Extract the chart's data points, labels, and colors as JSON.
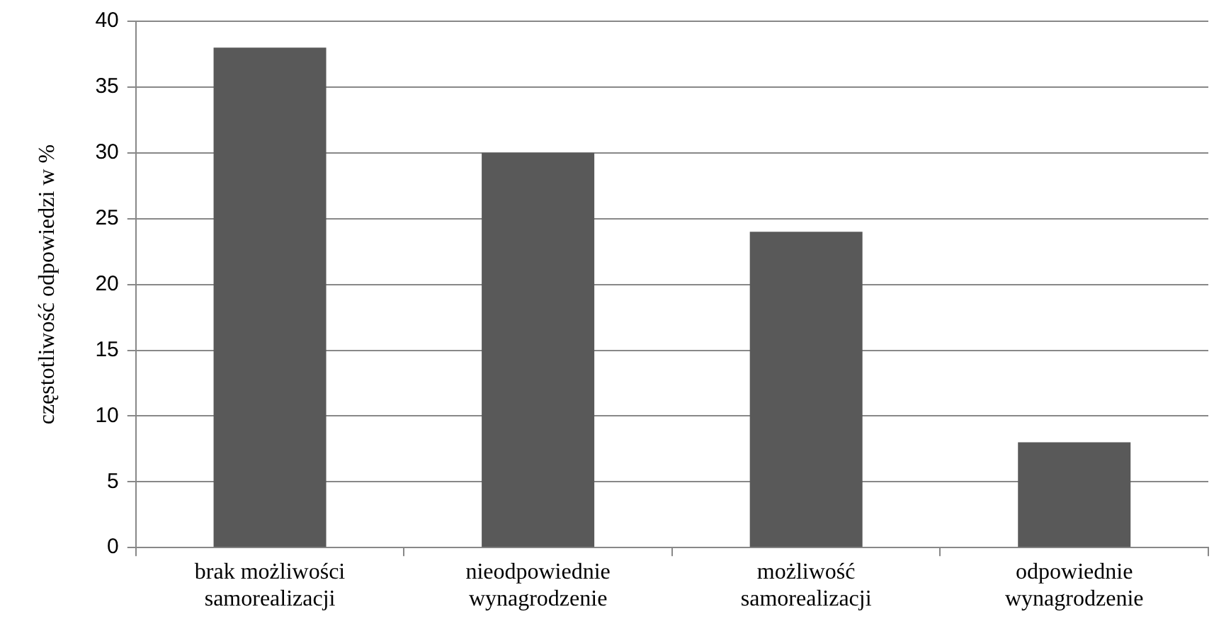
{
  "chart_data": {
    "type": "bar",
    "ylabel": "częstotliwość odpowiedzi w %",
    "categories": [
      "brak możliwości samorealizacji",
      "nieodpowiednie wynagrodzenie",
      "możliwość samorealizacji",
      "odpowiednie wynagrodzenie"
    ],
    "values": [
      38,
      30,
      24,
      8
    ],
    "color": "#595959",
    "ylim": [
      0,
      40
    ],
    "yticks": [
      0,
      5,
      10,
      15,
      20,
      25,
      30,
      35,
      40
    ],
    "grid": "y",
    "legend": false
  }
}
